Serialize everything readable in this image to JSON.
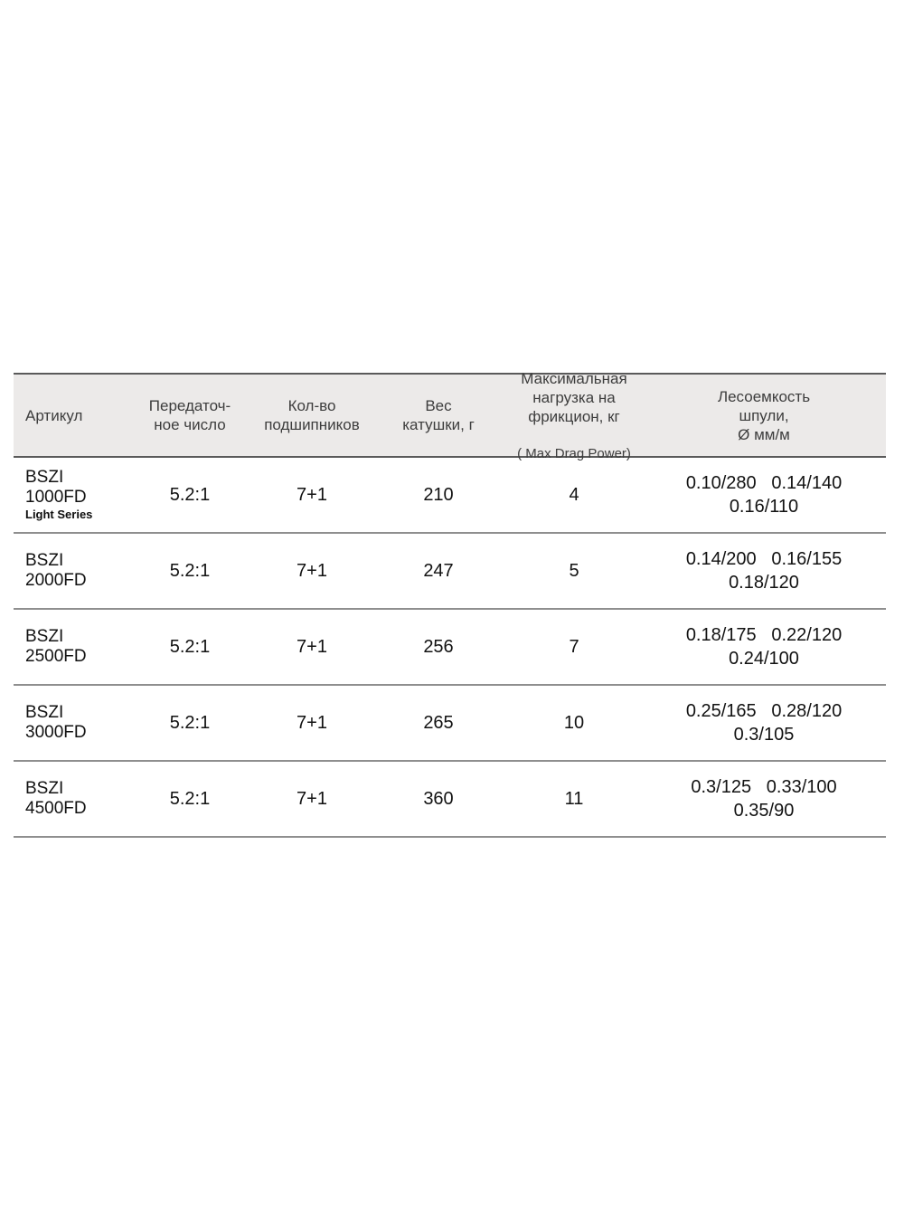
{
  "page": {
    "background": "#ffffff"
  },
  "table": {
    "header_bg": "#eceae9",
    "header_text_color": "#3d3d3d",
    "body_text_color": "#121212",
    "header_border_color": "#5a5a5a",
    "row_border_color": "#8f8f8f",
    "columns": [
      {
        "id": "article",
        "label": "Артикул"
      },
      {
        "id": "gear_ratio",
        "label": "Передаточ-\nное число"
      },
      {
        "id": "bearings",
        "label": "Кол-во\nподшипников"
      },
      {
        "id": "weight",
        "label": "Вес\nкатушки, г"
      },
      {
        "id": "max_drag",
        "label": "Максимальная\nнагрузка на\nфрикцион, кг",
        "sublabel": "( Max Drag Power)"
      },
      {
        "id": "line_capacity",
        "label": "Лесоемкость\nшпули,\nØ мм/м"
      }
    ],
    "rows": [
      {
        "article": "BSZI\n1000FD",
        "article_note": "Light Series",
        "gear_ratio": "5.2:1",
        "bearings": "7+1",
        "weight": "210",
        "max_drag": "4",
        "capacity_line1": "0.10/280   0.14/140",
        "capacity_line2": "0.16/110"
      },
      {
        "article": "BSZI\n2000FD",
        "article_note": "",
        "gear_ratio": "5.2:1",
        "bearings": "7+1",
        "weight": "247",
        "max_drag": "5",
        "capacity_line1": "0.14/200   0.16/155",
        "capacity_line2": "0.18/120"
      },
      {
        "article": "BSZI\n2500FD",
        "article_note": "",
        "gear_ratio": "5.2:1",
        "bearings": "7+1",
        "weight": "256",
        "max_drag": "7",
        "capacity_line1": "0.18/175   0.22/120",
        "capacity_line2": "0.24/100"
      },
      {
        "article": "BSZI\n3000FD",
        "article_note": "",
        "gear_ratio": "5.2:1",
        "bearings": "7+1",
        "weight": "265",
        "max_drag": "10",
        "capacity_line1": "0.25/165   0.28/120",
        "capacity_line2": "0.3/105"
      },
      {
        "article": "BSZI\n4500FD",
        "article_note": "",
        "gear_ratio": "5.2:1",
        "bearings": "7+1",
        "weight": "360",
        "max_drag": "11",
        "capacity_line1": "0.3/125   0.33/100",
        "capacity_line2": "0.35/90"
      }
    ]
  }
}
